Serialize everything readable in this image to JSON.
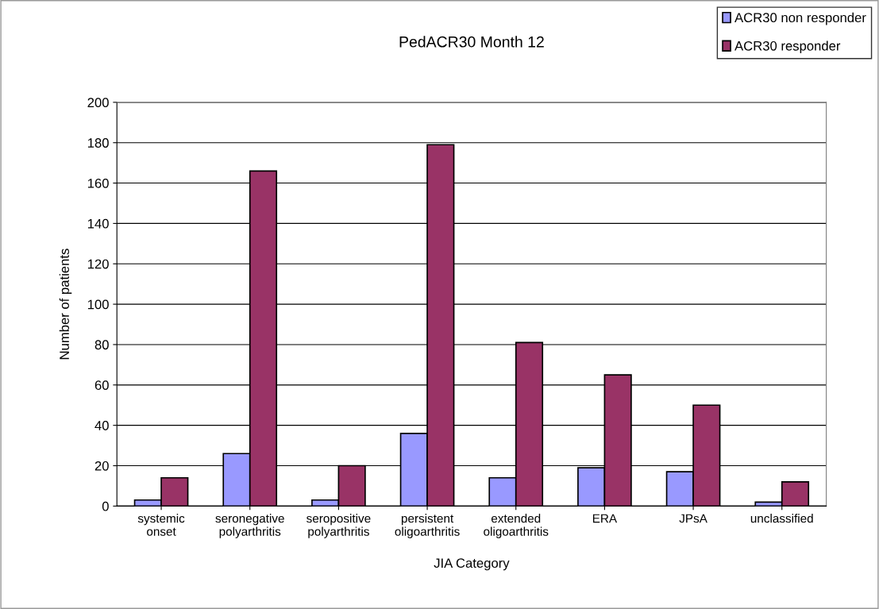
{
  "chart_data": {
    "type": "bar",
    "title": "PedACR30 Month 12",
    "xlabel": "JIA Category",
    "ylabel": "Number of patients",
    "categories": [
      "systemic\nonset",
      "seronegative\npolyarthritis",
      "seropositive\npolyarthritis",
      "persistent\noligoarthritis",
      "extended\noligoarthritis",
      "ERA",
      "JPsA",
      "unclassified"
    ],
    "series": [
      {
        "name": "ACR30 non responder",
        "color": "#9999ff",
        "values": [
          3,
          26,
          3,
          36,
          14,
          19,
          17,
          2
        ]
      },
      {
        "name": "ACR30 responder",
        "color": "#993366",
        "values": [
          14,
          166,
          20,
          179,
          81,
          65,
          50,
          12
        ]
      }
    ],
    "ylim": [
      0,
      200
    ],
    "yticks": [
      0,
      20,
      40,
      60,
      80,
      100,
      120,
      140,
      160,
      180,
      200
    ],
    "grid": "y",
    "legend": "top right"
  }
}
